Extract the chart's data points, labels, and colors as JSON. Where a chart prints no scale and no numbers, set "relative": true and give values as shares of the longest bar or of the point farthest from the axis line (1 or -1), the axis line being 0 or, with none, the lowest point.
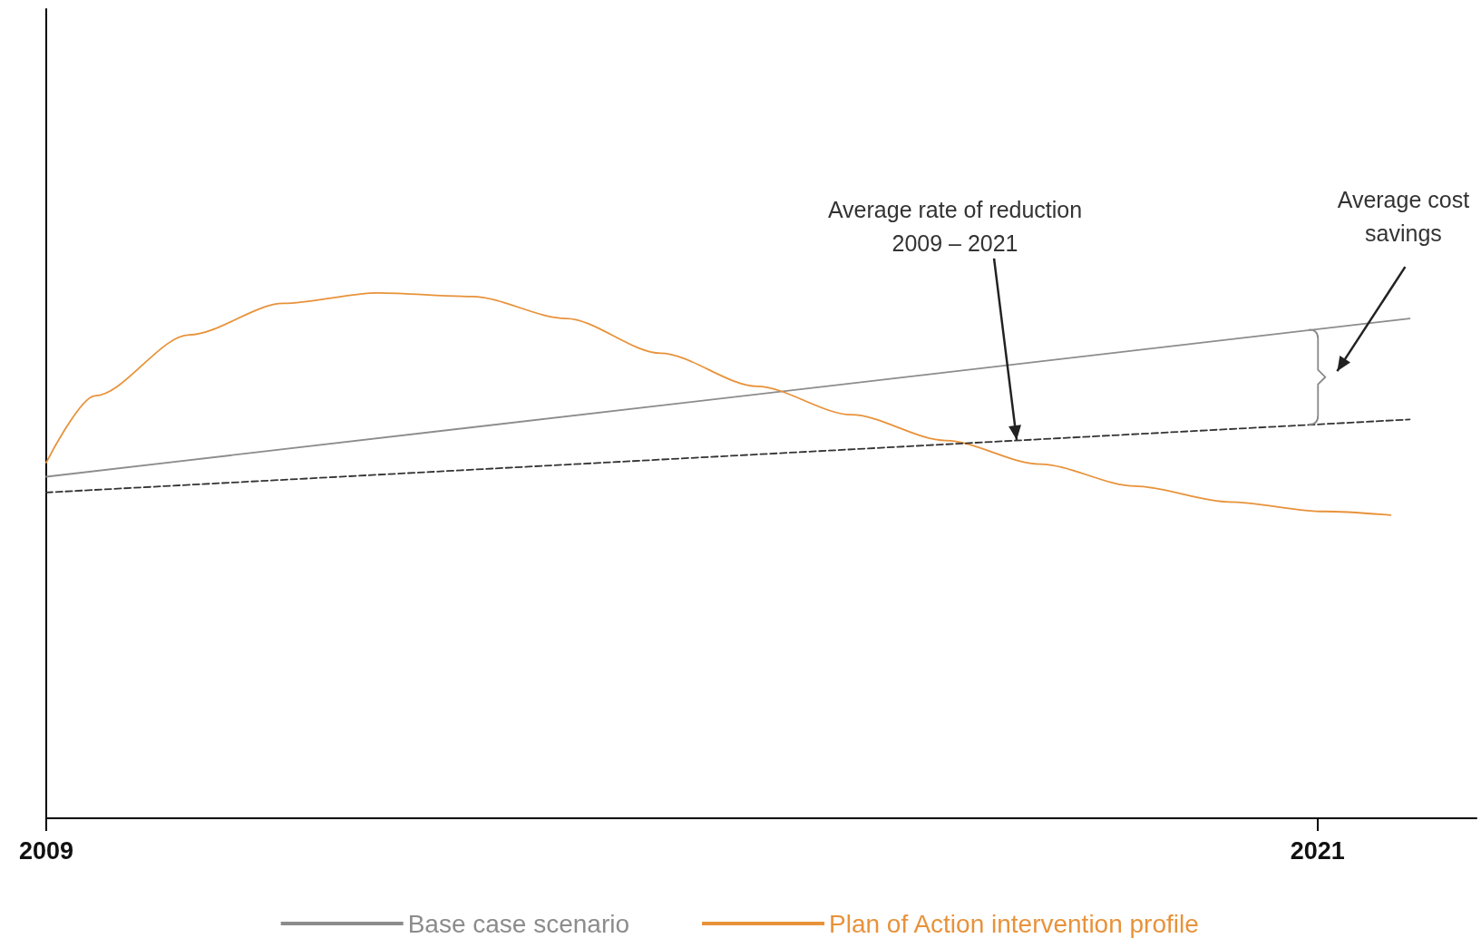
{
  "chart_data": {
    "type": "line",
    "relative": true,
    "xlim": [
      2009,
      2022.5
    ],
    "xticks": [
      2009,
      2021
    ],
    "grid": false,
    "legend": "bottom",
    "series": [
      {
        "name": "Base case scenario",
        "color": "#8c8c8c",
        "x": [
          2009,
          2021.87
        ],
        "values": [
          0.65,
          0.951
        ]
      },
      {
        "name": "Plan of Action intervention profile",
        "color": "#e8923a",
        "x": [
          2009,
          2009.46,
          2010.35,
          2011.24,
          2012.13,
          2013.02,
          2013.91,
          2014.8,
          2015.71,
          2016.6,
          2017.49,
          2018.38,
          2019.28,
          2020.17,
          2021.06,
          2021.69
        ],
        "values": [
          0.677,
          0.804,
          0.92,
          0.98,
          1.0,
          0.993,
          0.951,
          0.885,
          0.822,
          0.768,
          0.719,
          0.674,
          0.632,
          0.602,
          0.584,
          0.577
        ]
      },
      {
        "color": "#333333",
        "line_style": "dashed",
        "x": [
          2009,
          2021.87
        ],
        "values": [
          0.62,
          0.759
        ]
      }
    ],
    "annotations": [
      {
        "text": "Average rate of reduction\n2009 – 2021",
        "x": 2018.16,
        "y": 0.72
      },
      "Average cost savings"
    ]
  }
}
